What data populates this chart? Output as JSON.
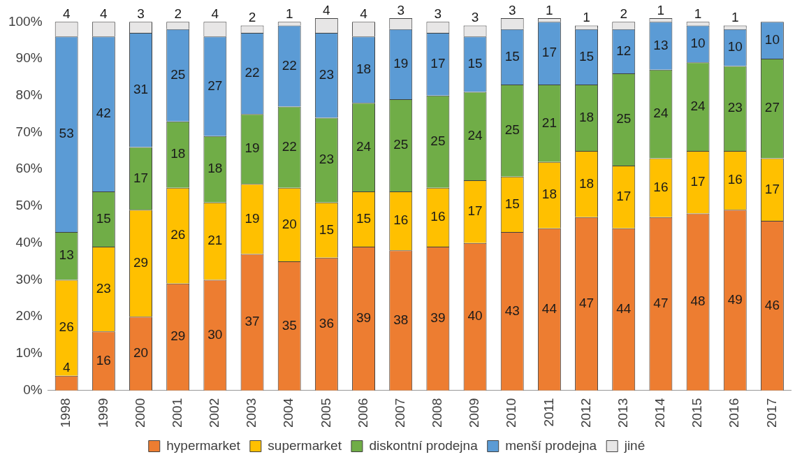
{
  "chart_data": {
    "type": "bar",
    "stacked": true,
    "data_labels": true,
    "grid": false,
    "legend": "bottom",
    "categories": [
      "1998",
      "1999",
      "2000",
      "2001",
      "2002",
      "2003",
      "2004",
      "2005",
      "2006",
      "2007",
      "2008",
      "2009",
      "2010",
      "2011",
      "2012",
      "2013",
      "2014",
      "2015",
      "2016",
      "2017"
    ],
    "series": [
      {
        "name": "hypermarket",
        "color": "#ed7d31",
        "values": [
          4,
          16,
          20,
          29,
          30,
          37,
          35,
          36,
          39,
          38,
          39,
          40,
          43,
          44,
          47,
          44,
          47,
          48,
          49,
          46
        ]
      },
      {
        "name": "supermarket",
        "color": "#ffc000",
        "values": [
          26,
          23,
          29,
          26,
          21,
          19,
          20,
          15,
          15,
          16,
          16,
          17,
          15,
          18,
          18,
          17,
          16,
          17,
          16,
          17
        ]
      },
      {
        "name": "diskontní prodejna",
        "color": "#70ad47",
        "values": [
          13,
          15,
          17,
          18,
          18,
          19,
          22,
          23,
          24,
          25,
          25,
          24,
          25,
          21,
          18,
          25,
          24,
          24,
          23,
          27
        ]
      },
      {
        "name": "menší prodejna",
        "color": "#5b9bd5",
        "values": [
          53,
          42,
          31,
          25,
          27,
          22,
          22,
          23,
          18,
          19,
          17,
          15,
          15,
          17,
          15,
          12,
          13,
          10,
          10,
          10
        ]
      },
      {
        "name": "jiné",
        "color": "#e7e6e6",
        "values": [
          4,
          4,
          3,
          2,
          4,
          2,
          1,
          4,
          4,
          3,
          3,
          3,
          3,
          1,
          1,
          2,
          1,
          1,
          1,
          null
        ]
      }
    ],
    "ylim": [
      0,
      101
    ],
    "yticks": [
      {
        "value": 0,
        "label": "0%"
      },
      {
        "value": 10,
        "label": "10%"
      },
      {
        "value": 20,
        "label": "20%"
      },
      {
        "value": 30,
        "label": "30%"
      },
      {
        "value": 40,
        "label": "40%"
      },
      {
        "value": 50,
        "label": "50%"
      },
      {
        "value": 60,
        "label": "60%"
      },
      {
        "value": 70,
        "label": "70%"
      },
      {
        "value": 80,
        "label": "80%"
      },
      {
        "value": 90,
        "label": "90%"
      },
      {
        "value": 100,
        "label": "100%"
      }
    ]
  }
}
